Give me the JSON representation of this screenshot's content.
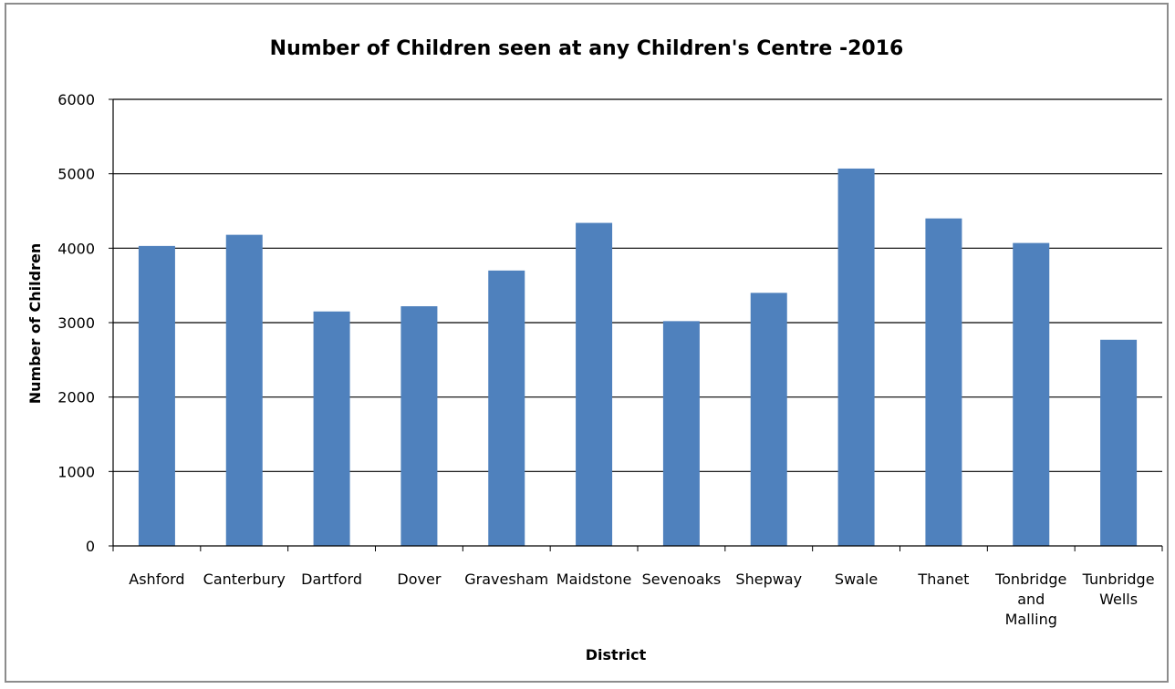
{
  "chart_data": {
    "type": "bar",
    "title": "Number of Children seen at any Children's Centre -2016",
    "xlabel": "District",
    "ylabel": "Number of Children",
    "categories": [
      [
        "Ashford"
      ],
      [
        "Canterbury"
      ],
      [
        "Dartford"
      ],
      [
        "Dover"
      ],
      [
        "Gravesham"
      ],
      [
        "Maidstone"
      ],
      [
        "Sevenoaks"
      ],
      [
        "Shepway"
      ],
      [
        "Swale"
      ],
      [
        "Thanet"
      ],
      [
        "Tonbridge",
        "and",
        "Malling"
      ],
      [
        "Tunbridge",
        "Wells"
      ]
    ],
    "values": [
      4030,
      4180,
      3150,
      3220,
      3700,
      4340,
      3020,
      3400,
      5070,
      4400,
      4070,
      2770
    ],
    "ylim": [
      0,
      6000
    ],
    "yticks": [
      "0",
      "1000",
      "2000",
      "3000",
      "4000",
      "5000",
      "6000"
    ],
    "grid": true,
    "legend": "none",
    "bar_color": "#4f81bd"
  }
}
